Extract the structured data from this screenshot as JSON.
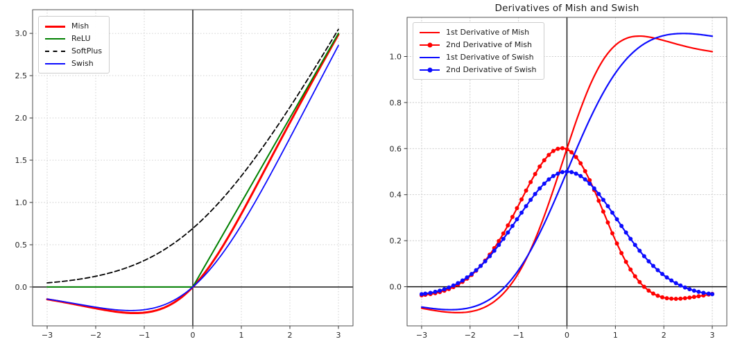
{
  "figure": {
    "background": "#ffffff",
    "style": {
      "grid_color": "#c9c9c9",
      "spine_color": "#4d4d4d",
      "axline_color": "#000000",
      "tick_color": "#333333",
      "tick_label_color": "#262626",
      "title_color": "#1a1a1a"
    }
  },
  "chart_data": [
    {
      "id": "activation-functions",
      "type": "line",
      "title": "",
      "xlabel": "",
      "ylabel": "",
      "xlim": [
        -3.3,
        3.3
      ],
      "ylim": [
        -0.46,
        3.28
      ],
      "grid": true,
      "legend_position": "upper-left",
      "axhline": 0,
      "axvline": 0,
      "xticks": [
        -3,
        -2,
        -1,
        0,
        1,
        2,
        3
      ],
      "xtick_labels": [
        "−3",
        "−2",
        "−1",
        "0",
        "1",
        "2",
        "3"
      ],
      "yticks": [
        0.0,
        0.5,
        1.0,
        1.5,
        2.0,
        2.5,
        3.0
      ],
      "ytick_labels": [
        "0.0",
        "0.5",
        "1.0",
        "1.5",
        "2.0",
        "2.5",
        "3.0"
      ],
      "x": [
        -3,
        -2.75,
        -2.5,
        -2.25,
        -2,
        -1.75,
        -1.5,
        -1.25,
        -1,
        -0.75,
        -0.5,
        -0.25,
        0,
        0.25,
        0.5,
        0.75,
        1,
        1.25,
        1.5,
        1.75,
        2,
        2.25,
        2.5,
        2.75,
        3
      ],
      "series": [
        {
          "name": "Mish",
          "color": "#ff0000",
          "linewidth": 3,
          "linestyle": "solid",
          "marker": "none",
          "smooth": true,
          "values": [
            -0.1456,
            -0.1702,
            -0.1968,
            -0.2247,
            -0.2525,
            -0.278,
            -0.2981,
            -0.3084,
            -0.3034,
            -0.2765,
            -0.2207,
            -0.1299,
            0.0,
            0.1696,
            0.3752,
            0.61,
            0.8651,
            1.1319,
            1.4034,
            1.6749,
            1.944,
            2.2095,
            2.4714,
            2.7302,
            2.9865
          ]
        },
        {
          "name": "ReLU",
          "color": "#008000",
          "linewidth": 2,
          "linestyle": "solid",
          "marker": "none",
          "smooth": false,
          "values": [
            0,
            0,
            0,
            0,
            0,
            0,
            0,
            0,
            0,
            0,
            0,
            0,
            0,
            0.25,
            0.5,
            0.75,
            1.0,
            1.25,
            1.5,
            1.75,
            2.0,
            2.25,
            2.5,
            2.75,
            3.0
          ]
        },
        {
          "name": "SoftPlus",
          "color": "#000000",
          "linewidth": 1.8,
          "linestyle": "dashed",
          "marker": "none",
          "smooth": true,
          "values": [
            0.0486,
            0.062,
            0.0789,
            0.1002,
            0.1269,
            0.1602,
            0.2014,
            0.2519,
            0.3133,
            0.3869,
            0.4741,
            0.5759,
            0.6931,
            0.8259,
            0.9741,
            1.1369,
            1.3133,
            1.5019,
            1.7014,
            1.9102,
            2.1269,
            2.3502,
            2.5789,
            2.812,
            3.0486
          ]
        },
        {
          "name": "Swish",
          "color": "#0b0bff",
          "linewidth": 1.8,
          "linestyle": "solid",
          "marker": "none",
          "smooth": true,
          "values": [
            -0.1423,
            -0.1652,
            -0.1896,
            -0.2145,
            -0.2384,
            -0.2591,
            -0.2736,
            -0.2784,
            -0.2689,
            -0.2406,
            -0.1888,
            -0.1095,
            0.0,
            0.1405,
            0.3112,
            0.5094,
            0.7311,
            0.9716,
            1.2264,
            1.4909,
            1.7616,
            2.0355,
            2.3104,
            2.5848,
            2.8577
          ]
        }
      ]
    },
    {
      "id": "derivatives",
      "type": "line",
      "title": "Derivatives of Mish and Swish",
      "xlabel": "",
      "ylabel": "",
      "xlim": [
        -3.3,
        3.3
      ],
      "ylim": [
        -0.17,
        1.17
      ],
      "grid": true,
      "legend_position": "upper-left",
      "axhline": 0,
      "axvline": 0,
      "xticks": [
        -3,
        -2,
        -1,
        0,
        1,
        2,
        3
      ],
      "xtick_labels": [
        "−3",
        "−2",
        "−1",
        "0",
        "1",
        "2",
        "3"
      ],
      "yticks": [
        0.0,
        0.2,
        0.4,
        0.6,
        0.8,
        1.0
      ],
      "ytick_labels": [
        "0.0",
        "0.2",
        "0.4",
        "0.6",
        "0.8",
        "1.0"
      ],
      "x": [
        -3,
        -2.75,
        -2.5,
        -2.25,
        -2,
        -1.75,
        -1.5,
        -1.25,
        -1,
        -0.75,
        -0.5,
        -0.25,
        0,
        0.25,
        0.5,
        0.75,
        1,
        1.25,
        1.5,
        1.75,
        2,
        2.25,
        2.5,
        2.75,
        3
      ],
      "series": [
        {
          "name": "1st Derivative of Mish",
          "color": "#ff0000",
          "linewidth": 2.2,
          "linestyle": "solid",
          "marker": "none",
          "smooth": true,
          "values": [
            -0.0934,
            -0.1027,
            -0.1097,
            -0.1125,
            -0.1084,
            -0.0937,
            -0.0641,
            -0.0147,
            0.0592,
            0.1607,
            0.2895,
            0.4398,
            0.6,
            0.7542,
            0.8864,
            0.9858,
            1.049,
            1.0805,
            1.0885,
            1.0823,
            1.0693,
            1.0547,
            1.0411,
            1.0299,
            1.0211
          ]
        },
        {
          "name": "2nd Derivative of Mish",
          "color": "#ff0000",
          "linewidth": 2.2,
          "linestyle": "solid",
          "marker": "circle",
          "smooth": true,
          "values": [
            -0.037,
            -0.0294,
            -0.015,
            0.009,
            0.0456,
            0.0978,
            0.1676,
            0.2544,
            0.3536,
            0.4545,
            0.5408,
            0.5934,
            0.5969,
            0.5459,
            0.449,
            0.3263,
            0.2021,
            0.0965,
            0.0203,
            -0.0258,
            -0.0474,
            -0.0524,
            -0.0482,
            -0.0401,
            -0.0312
          ]
        },
        {
          "name": "1st Derivative of Swish",
          "color": "#0b0bff",
          "linewidth": 2.2,
          "linestyle": "solid",
          "marker": "none",
          "smooth": true,
          "values": [
            -0.0881,
            -0.0952,
            -0.0994,
            -0.0987,
            -0.0908,
            -0.0727,
            -0.0413,
            0.0063,
            0.0723,
            0.1574,
            0.26,
            0.3763,
            0.5,
            0.6237,
            0.74,
            0.8426,
            0.9277,
            0.9937,
            1.0413,
            1.0727,
            1.0908,
            1.0987,
            1.0994,
            1.0952,
            1.0881
          ]
        },
        {
          "name": "2nd Derivative of Swish",
          "color": "#0b0bff",
          "linewidth": 2.2,
          "linestyle": "solid",
          "marker": "circle",
          "smooth": true,
          "values": [
            -0.0323,
            -0.0237,
            -0.0085,
            0.0154,
            0.0501,
            0.0969,
            0.1562,
            0.2262,
            0.3024,
            0.3772,
            0.4412,
            0.4846,
            0.5,
            0.4846,
            0.4412,
            0.3772,
            0.3024,
            0.2262,
            0.1562,
            0.0969,
            0.0501,
            0.0154,
            -0.0085,
            -0.0237,
            -0.0323
          ]
        }
      ]
    }
  ]
}
